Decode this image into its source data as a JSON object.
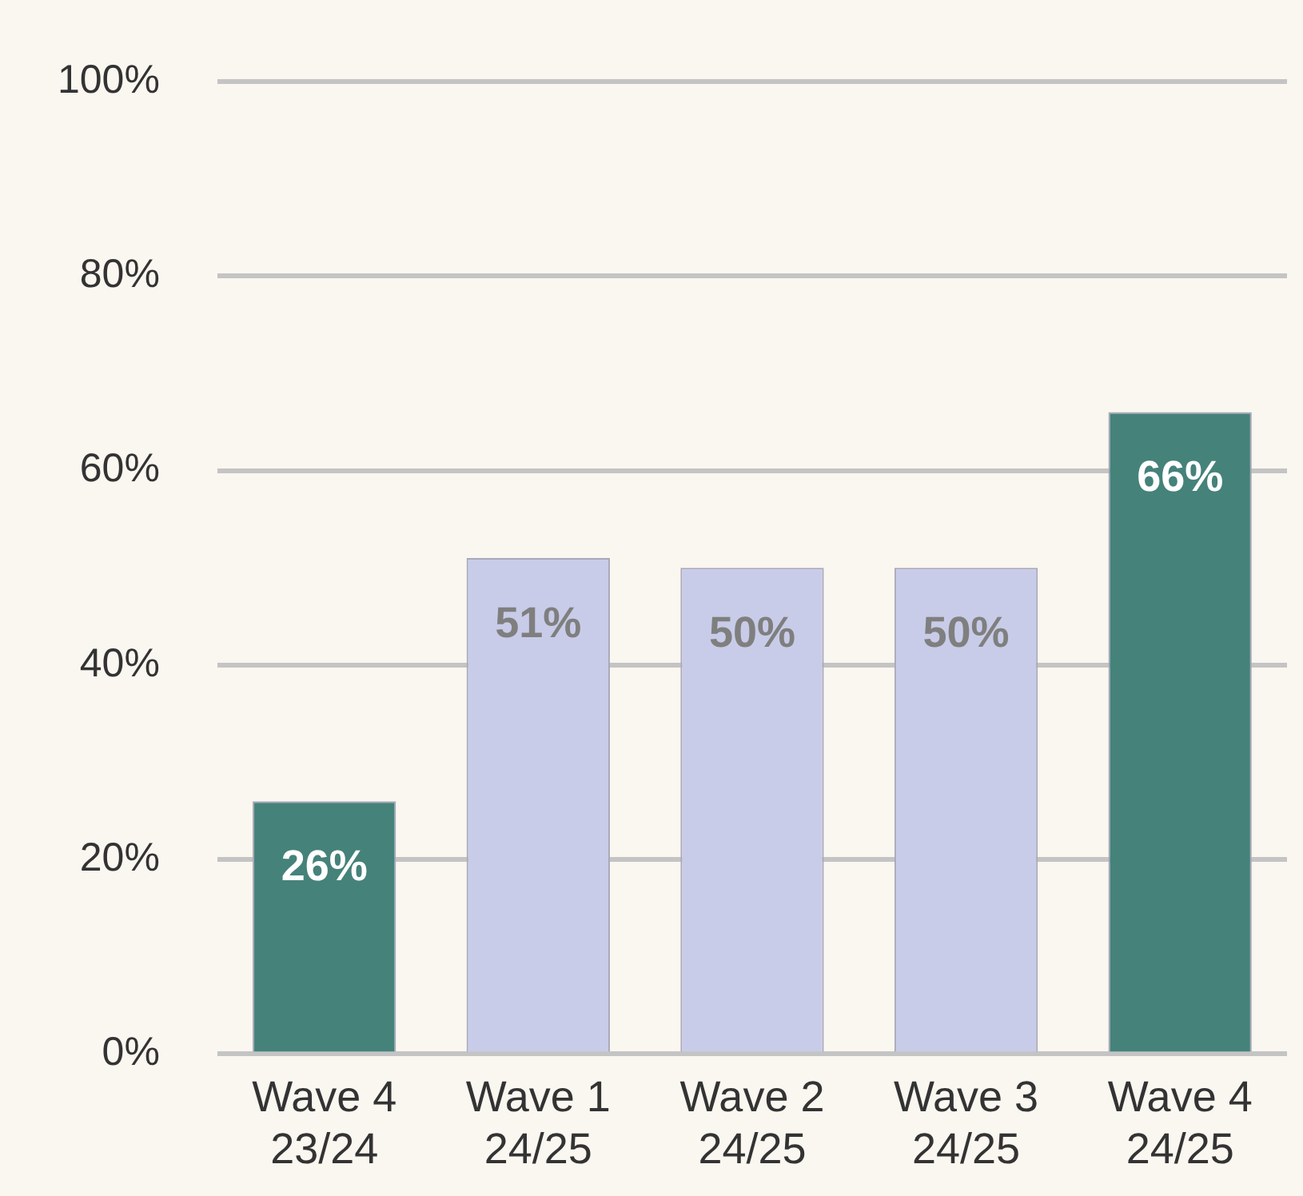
{
  "chart_data": {
    "type": "bar",
    "categories": [
      "Wave 4\n23/24",
      "Wave 1\n24/25",
      "Wave 2\n24/25",
      "Wave 3\n24/25",
      "Wave 4\n24/25"
    ],
    "values": [
      26,
      51,
      50,
      50,
      66
    ],
    "colors": [
      "#45827a",
      "#c8cce8",
      "#c8cce8",
      "#c8cce8",
      "#45827a"
    ],
    "value_labels": [
      "26%",
      "51%",
      "50%",
      "50%",
      "66%"
    ],
    "ylim": [
      0,
      100
    ],
    "yticks": [
      {
        "value": 0,
        "label": "0%"
      },
      {
        "value": 20,
        "label": "20%"
      },
      {
        "value": 40,
        "label": "40%"
      },
      {
        "value": 60,
        "label": "60%"
      },
      {
        "value": 80,
        "label": "80%"
      },
      {
        "value": 100,
        "label": "100%"
      }
    ],
    "grid": "y",
    "legend": false
  }
}
